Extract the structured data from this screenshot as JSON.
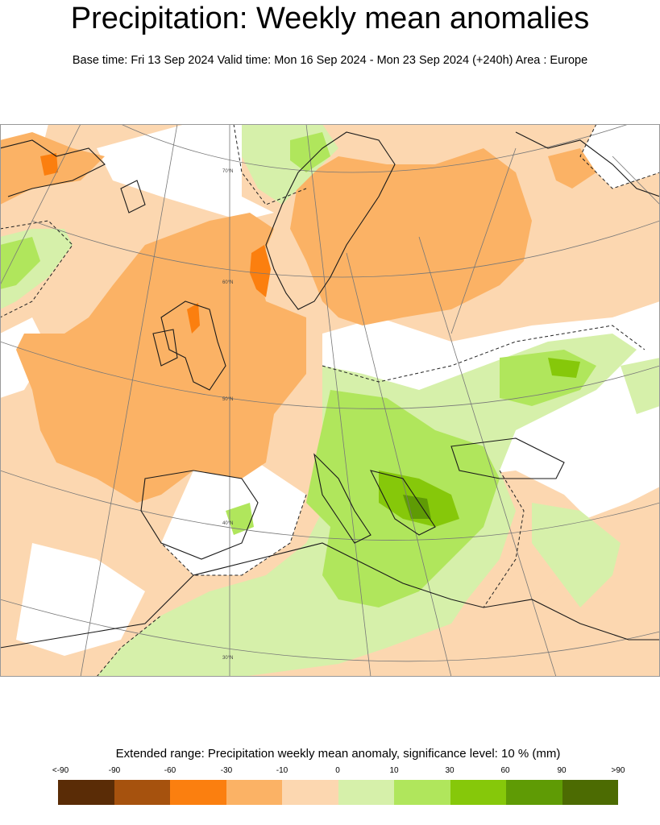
{
  "header": {
    "title": "Precipitation: Weekly mean anomalies",
    "subtitle": "Base time: Fri 13 Sep 2024 Valid time: Mon 16 Sep 2024 - Mon 23 Sep 2024 (+240h) Area : Europe"
  },
  "map": {
    "area": "Europe",
    "lat_labels": [
      "70°N",
      "60°N",
      "50°N",
      "40°N",
      "30°N"
    ]
  },
  "legend": {
    "title": "Extended range: Precipitation weekly mean anomaly, significance level: 10 % (mm)",
    "ticks": [
      "<-90",
      "-90",
      "-60",
      "-30",
      "-10",
      "0",
      "10",
      "30",
      "60",
      "90",
      ">90"
    ],
    "colors": [
      "#5a2c06",
      "#a6520e",
      "#fb7f0f",
      "#fbb265",
      "#fcd7b0",
      "#d6f0aa",
      "#b0e65c",
      "#86c80a",
      "#5f9b05",
      "#4c6b02"
    ]
  }
}
